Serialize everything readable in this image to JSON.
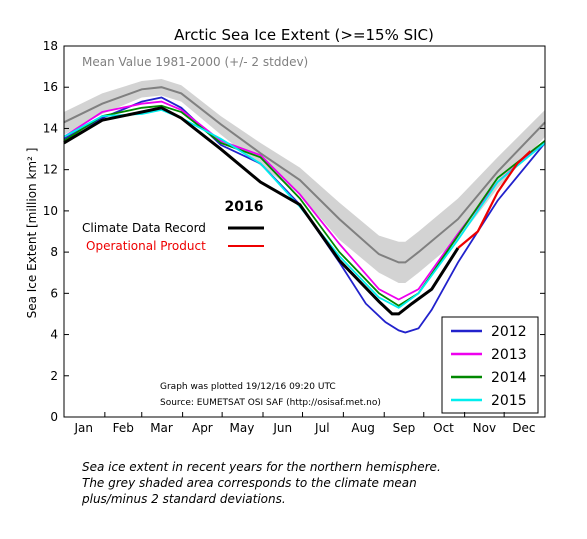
{
  "chart_data": {
    "type": "line",
    "title": "Arctic Sea Ice Extent (>=15% SIC)",
    "ylabel": "Sea Ice Extent [million km² ]",
    "xlabel": "",
    "ylim": [
      0,
      18
    ],
    "yticks": [
      0,
      2,
      4,
      6,
      8,
      10,
      12,
      14,
      16,
      18
    ],
    "xlim": [
      1,
      366
    ],
    "months": [
      "Jan",
      "Feb",
      "Mar",
      "Apr",
      "May",
      "Jun",
      "Jul",
      "Aug",
      "Sep",
      "Oct",
      "Nov",
      "Dec"
    ],
    "month_label_days": [
      16,
      46,
      75,
      106,
      136,
      167,
      197,
      228,
      259,
      289,
      320,
      350
    ],
    "mean_label": "Mean Value 1981-2000 (+/- 2 stddev)",
    "mean": {
      "x": [
        1,
        30,
        60,
        75,
        90,
        120,
        150,
        180,
        210,
        240,
        255,
        260,
        270,
        300,
        330,
        366
      ],
      "values": [
        14.3,
        15.2,
        15.9,
        16.0,
        15.7,
        14.2,
        12.8,
        11.5,
        9.6,
        7.9,
        7.5,
        7.5,
        8.0,
        9.6,
        11.9,
        14.3
      ],
      "upper": [
        14.8,
        15.7,
        16.3,
        16.4,
        16.1,
        14.6,
        13.3,
        12.1,
        10.4,
        8.8,
        8.5,
        8.5,
        9.0,
        10.6,
        12.6,
        14.9
      ],
      "lower": [
        13.7,
        14.7,
        15.5,
        15.6,
        15.3,
        13.7,
        12.2,
        10.8,
        8.6,
        7.0,
        6.5,
        6.5,
        7.0,
        8.6,
        11.1,
        13.6
      ],
      "color": "#808080",
      "band_color": "#d3d3d3"
    },
    "series": [
      {
        "name": "2012",
        "color": "#2222cc",
        "x": [
          1,
          30,
          60,
          75,
          90,
          120,
          150,
          180,
          210,
          230,
          245,
          255,
          260,
          270,
          280,
          300,
          330,
          366
        ],
        "values": [
          13.5,
          14.5,
          15.3,
          15.5,
          15.0,
          13.2,
          12.3,
          10.3,
          7.5,
          5.5,
          4.6,
          4.2,
          4.1,
          4.3,
          5.2,
          7.5,
          10.5,
          13.3
        ]
      },
      {
        "name": "2013",
        "color": "#ee00ee",
        "x": [
          1,
          30,
          60,
          75,
          90,
          120,
          150,
          180,
          210,
          240,
          255,
          270,
          300,
          330,
          366
        ],
        "values": [
          13.6,
          14.8,
          15.2,
          15.3,
          14.9,
          13.4,
          12.7,
          10.8,
          8.4,
          6.2,
          5.7,
          6.2,
          8.9,
          11.4,
          13.4
        ]
      },
      {
        "name": "2014",
        "color": "#008800",
        "x": [
          1,
          30,
          60,
          75,
          90,
          120,
          150,
          180,
          210,
          240,
          255,
          270,
          300,
          330,
          366
        ],
        "values": [
          13.4,
          14.6,
          15.0,
          15.1,
          14.8,
          13.3,
          12.6,
          10.6,
          8.0,
          6.0,
          5.4,
          6.0,
          8.8,
          11.6,
          13.4
        ]
      },
      {
        "name": "2015",
        "color": "#00eeee",
        "x": [
          1,
          30,
          60,
          75,
          90,
          120,
          150,
          180,
          210,
          240,
          255,
          270,
          300,
          330,
          366
        ],
        "values": [
          13.6,
          14.6,
          14.7,
          14.9,
          14.5,
          13.5,
          12.3,
          10.2,
          7.8,
          5.8,
          5.3,
          6.0,
          8.6,
          11.4,
          13.3
        ]
      }
    ],
    "series_2016": {
      "name": "Climate Data Record",
      "color": "#000000",
      "x": [
        1,
        30,
        60,
        75,
        90,
        120,
        150,
        180,
        210,
        240,
        250,
        255,
        265,
        280,
        300
      ],
      "values": [
        13.3,
        14.4,
        14.8,
        15.0,
        14.5,
        13.0,
        11.4,
        10.3,
        7.6,
        5.6,
        5.0,
        5.0,
        5.5,
        6.2,
        8.2
      ]
    },
    "series_2016_op": {
      "name": "Operational Product",
      "color": "#ee0000",
      "x": [
        300,
        315,
        330,
        345,
        355
      ],
      "values": [
        8.2,
        9.0,
        10.9,
        12.3,
        12.9
      ]
    },
    "legend_2016": {
      "title": "2016",
      "entries": [
        "Climate Data Record",
        "Operational Product"
      ],
      "colors": [
        "#000000",
        "#ee0000"
      ]
    },
    "legend_years": {
      "placement": "bottom-right",
      "entries": [
        "2012",
        "2013",
        "2014",
        "2015"
      ],
      "colors": [
        "#2222cc",
        "#ee00ee",
        "#008800",
        "#00eeee"
      ]
    },
    "annotation_line1": "Graph was plotted 19/12/16 09:20 UTC",
    "annotation_line2": "Source: EUMETSAT OSI SAF (http://osisaf.met.no)"
  },
  "caption": {
    "line1": "Sea ice extent in recent years for the northern hemisphere.",
    "line2": "The grey shaded area corresponds to the climate mean",
    "line3": "plus/minus 2 standard deviations."
  }
}
